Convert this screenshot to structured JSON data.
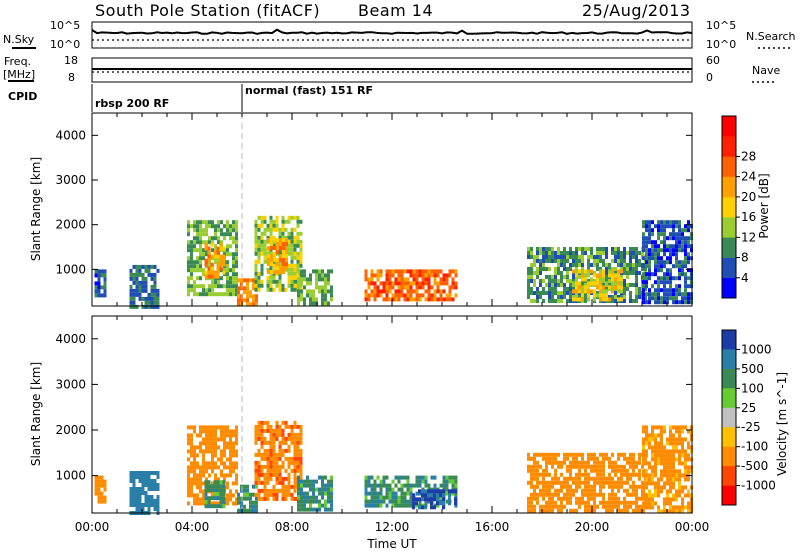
{
  "header": {
    "title": "South Pole Station (fitACF)",
    "beam": "Beam 14",
    "date": "25/Aug/2013"
  },
  "top_panels": {
    "nsky_label": "N.Sky",
    "nsky_ticks": [
      "10^5",
      "10^0"
    ],
    "nsearch_label": "N.Search",
    "nsearch_ticks": [
      "10^5",
      "10^0"
    ],
    "freq_label_1": "Freq.",
    "freq_label_2": "[MHz]",
    "freq_ticks": [
      "18",
      "8"
    ],
    "nave_label": "Nave",
    "nave_ticks": [
      "60",
      "0"
    ],
    "cpid_label": "CPID",
    "cpid_segments": [
      {
        "label": "rbsp 200 RF",
        "start_hour": 0
      },
      {
        "label": "normal (fast) 151 RF",
        "start_hour": 6
      }
    ]
  },
  "axes": {
    "xlabel": "Time UT",
    "x_ticks": [
      "00:00",
      "04:00",
      "08:00",
      "12:00",
      "16:00",
      "20:00",
      "00:00"
    ],
    "ylabel": "Slant Range [km]",
    "y_ticks": [
      "1000",
      "2000",
      "3000",
      "4000"
    ]
  },
  "power_scale": {
    "label": "Power [dB]",
    "ticks": [
      "4",
      "8",
      "12",
      "16",
      "20",
      "24",
      "28"
    ],
    "colors": [
      "#0000ff",
      "#1f4fb4",
      "#3a8a55",
      "#9acd32",
      "#ffd000",
      "#ffa000",
      "#ff6000",
      "#ff2000",
      "#ff0000"
    ]
  },
  "velocity_scale": {
    "label": "Velocity [m s^-1]",
    "ticks": [
      "1000",
      "500",
      "100",
      "25",
      "-25",
      "-100",
      "-500",
      "-1000"
    ],
    "colors": [
      "#1e3ca8",
      "#2a7fa8",
      "#3a8a55",
      "#66cc33",
      "#c0c0c0",
      "#ffc000",
      "#ff8c00",
      "#ff4500",
      "#ff0000"
    ]
  },
  "chart_data": [
    {
      "type": "heatmap",
      "name": "Power [dB]",
      "x_range_hours": [
        0,
        24
      ],
      "y_range_km": [
        180,
        4500
      ],
      "regions": [
        {
          "t0": 0.1,
          "t1": 0.5,
          "r0": 400,
          "r1": 1000,
          "value": 6
        },
        {
          "t0": 1.5,
          "t1": 2.6,
          "r0": 200,
          "r1": 1100,
          "value": 8
        },
        {
          "t0": 3.8,
          "t1": 5.8,
          "r0": 400,
          "r1": 2100,
          "value": 12
        },
        {
          "t0": 4.5,
          "t1": 5.3,
          "r0": 800,
          "r1": 1600,
          "value": 22
        },
        {
          "t0": 5.8,
          "t1": 6.6,
          "r0": 200,
          "r1": 800,
          "value": 24
        },
        {
          "t0": 6.5,
          "t1": 8.4,
          "r0": 500,
          "r1": 2200,
          "value": 14
        },
        {
          "t0": 7.0,
          "t1": 7.8,
          "r0": 900,
          "r1": 1700,
          "value": 22
        },
        {
          "t0": 8.2,
          "t1": 9.6,
          "r0": 250,
          "r1": 1000,
          "value": 12
        },
        {
          "t0": 10.9,
          "t1": 14.6,
          "r0": 300,
          "r1": 1000,
          "value": 26
        },
        {
          "t0": 17.4,
          "t1": 22.2,
          "r0": 250,
          "r1": 1500,
          "value": 10
        },
        {
          "t0": 19.2,
          "t1": 21.2,
          "r0": 300,
          "r1": 1000,
          "value": 18
        },
        {
          "t0": 22.0,
          "t1": 24.0,
          "r0": 250,
          "r1": 2100,
          "value": 6
        }
      ]
    },
    {
      "type": "heatmap",
      "name": "Velocity [m s^-1]",
      "x_range_hours": [
        0,
        24
      ],
      "y_range_km": [
        180,
        4500
      ],
      "regions": [
        {
          "t0": 0.1,
          "t1": 0.5,
          "r0": 400,
          "r1": 1000,
          "value": -200
        },
        {
          "t0": 1.5,
          "t1": 2.6,
          "r0": 200,
          "r1": 1100,
          "value": 300
        },
        {
          "t0": 3.8,
          "t1": 5.8,
          "r0": 400,
          "r1": 2100,
          "value": -300
        },
        {
          "t0": 4.5,
          "t1": 5.3,
          "r0": 300,
          "r1": 900,
          "value": 80
        },
        {
          "t0": 5.8,
          "t1": 6.6,
          "r0": 200,
          "r1": 800,
          "value": 80
        },
        {
          "t0": 6.5,
          "t1": 8.4,
          "r0": 500,
          "r1": 2200,
          "value": -400
        },
        {
          "t0": 8.2,
          "t1": 9.6,
          "r0": 250,
          "r1": 1000,
          "value": 80
        },
        {
          "t0": 10.9,
          "t1": 14.6,
          "r0": 300,
          "r1": 1000,
          "value": 80
        },
        {
          "t0": 12.8,
          "t1": 14.6,
          "r0": 300,
          "r1": 700,
          "value": 600
        },
        {
          "t0": 17.4,
          "t1": 22.2,
          "r0": 250,
          "r1": 1500,
          "value": -300
        },
        {
          "t0": 22.0,
          "t1": 24.0,
          "r0": 250,
          "r1": 2100,
          "value": -150
        }
      ]
    }
  ]
}
